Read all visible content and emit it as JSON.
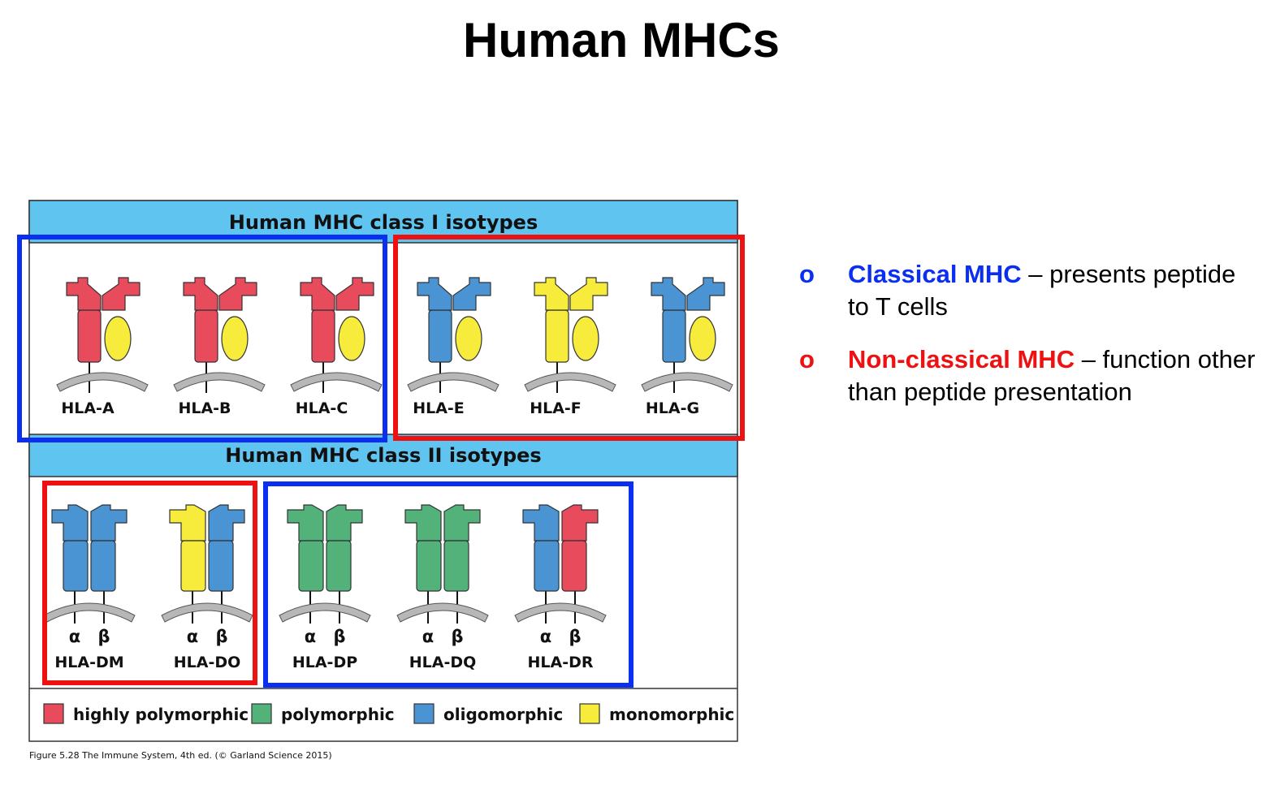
{
  "title": "Human MHCs",
  "figure": {
    "class1_header": "Human MHC class I isotypes",
    "class2_header": "Human MHC class II isotypes",
    "alpha_label": "α",
    "beta_label": "β",
    "class1_molecules": [
      {
        "name": "HLA-A",
        "alpha_color": "#e84b5b",
        "beta_color": "#e84b5b"
      },
      {
        "name": "HLA-B",
        "alpha_color": "#e84b5b",
        "beta_color": "#e84b5b"
      },
      {
        "name": "HLA-C",
        "alpha_color": "#e84b5b",
        "beta_color": "#e84b5b"
      },
      {
        "name": "HLA-E",
        "alpha_color": "#4a94d4",
        "beta_color": "#4a94d4"
      },
      {
        "name": "HLA-F",
        "alpha_color": "#f7ec3c",
        "beta_color": "#f7ec3c"
      },
      {
        "name": "HLA-G",
        "alpha_color": "#4a94d4",
        "beta_color": "#4a94d4"
      }
    ],
    "class2_molecules": [
      {
        "name": "HLA-DM",
        "alpha_color": "#4a94d4",
        "beta_color": "#4a94d4"
      },
      {
        "name": "HLA-DO",
        "alpha_color": "#f7ec3c",
        "beta_color": "#4a94d4"
      },
      {
        "name": "HLA-DP",
        "alpha_color": "#52b27a",
        "beta_color": "#52b27a"
      },
      {
        "name": "HLA-DQ",
        "alpha_color": "#52b27a",
        "beta_color": "#52b27a"
      },
      {
        "name": "HLA-DR",
        "alpha_color": "#4a94d4",
        "beta_color": "#e84b5b"
      }
    ],
    "legend": [
      {
        "label": "highly polymorphic",
        "color": "#e84b5b"
      },
      {
        "label": "polymorphic",
        "color": "#52b27a"
      },
      {
        "label": "oligomorphic",
        "color": "#4a94d4"
      },
      {
        "label": "monomorphic",
        "color": "#f7ec3c"
      }
    ],
    "caption": "Figure 5.28 The Immune System, 4th ed. (© Garland Science 2015)"
  },
  "colors": {
    "header_band": "#5fc4f0",
    "classical_box": "#0a2ff0",
    "nonclassical_box": "#ee1111",
    "beta2m": "#f7ec3c",
    "membrane": "#b7b7b7"
  },
  "bullets": [
    {
      "marker": "o",
      "term": "Classical MHC",
      "rest": " – presents peptide to T cells",
      "color": "#0a2ff0"
    },
    {
      "marker": "o",
      "term": "Non-classical MHC",
      "rest": " – function other than peptide presentation",
      "color": "#ee1111"
    }
  ]
}
